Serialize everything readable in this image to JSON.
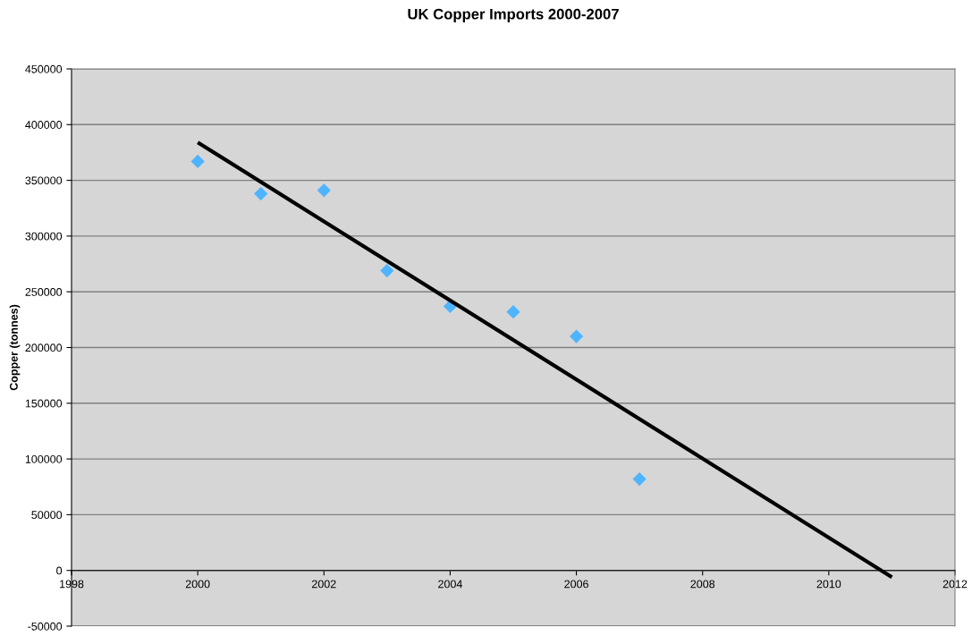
{
  "chart_data": {
    "type": "scatter",
    "title": "UK Copper Imports 2000-2007",
    "ylabel": "Copper (tonnes)",
    "xlim": [
      1998,
      2012
    ],
    "xticks": [
      1998,
      2000,
      2002,
      2004,
      2006,
      2008,
      2010,
      2012
    ],
    "ylim": [
      -50000,
      450000
    ],
    "yticks": [
      -50000,
      0,
      50000,
      100000,
      150000,
      200000,
      250000,
      300000,
      350000,
      400000,
      450000
    ],
    "grid": "y",
    "legend": false,
    "marker": "diamond",
    "series": [
      {
        "color": "#4fb4ff",
        "x": [
          2000,
          2001,
          2002,
          2003,
          2004,
          2005,
          2006,
          2007
        ],
        "values": [
          367000,
          338000,
          341000,
          269000,
          237000,
          232000,
          210000,
          82000
        ]
      },
      {
        "type": "line",
        "color": "#000000",
        "marker": "none",
        "line_style": "solid",
        "x": [
          2000,
          2011
        ],
        "values": [
          384000,
          -6000
        ]
      }
    ]
  }
}
